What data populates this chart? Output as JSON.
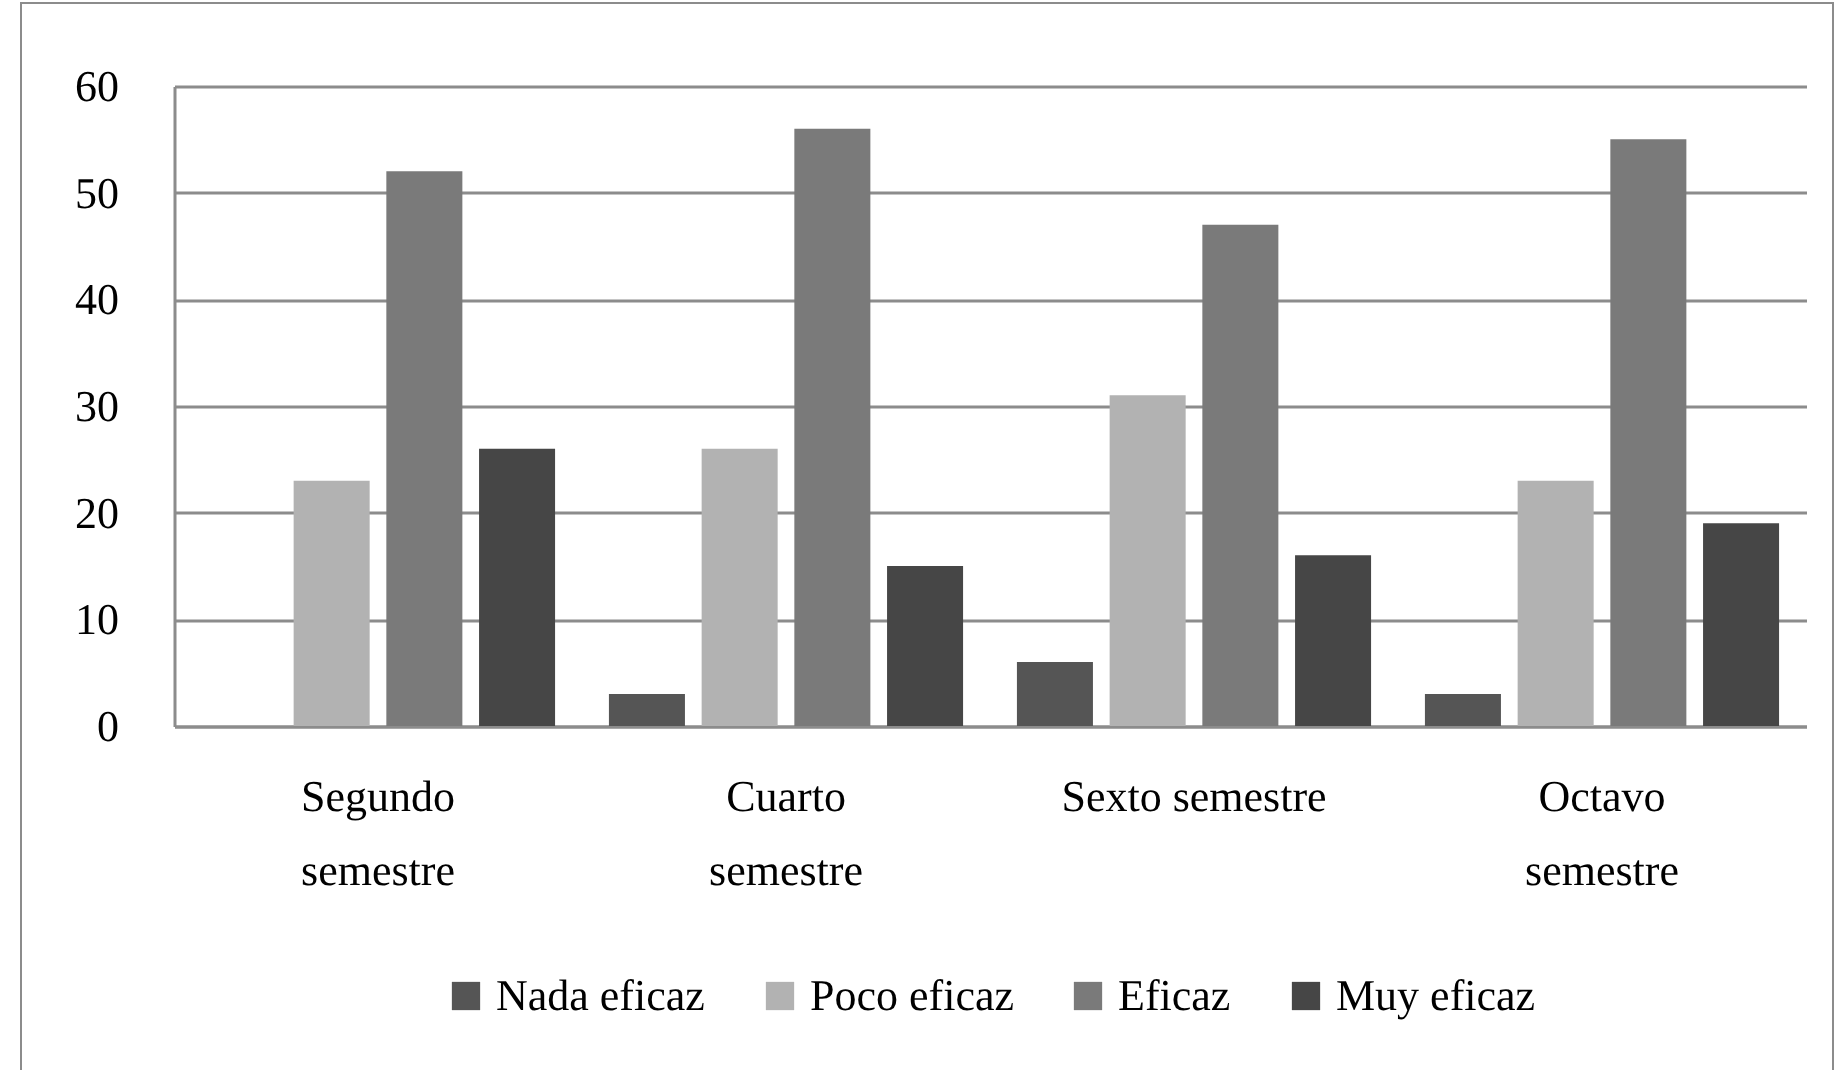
{
  "chart_data": {
    "type": "bar",
    "categories": [
      "Segundo semestre",
      "Cuarto semestre",
      "Sexto semestre",
      "Octavo semestre"
    ],
    "series": [
      {
        "name": "Nada eficaz",
        "color": "#555555",
        "values": [
          null,
          3,
          6,
          3
        ]
      },
      {
        "name": "Poco eficaz",
        "color": "#b2b2b2",
        "values": [
          23,
          26,
          31,
          23
        ]
      },
      {
        "name": "Eficaz",
        "color": "#7a7a7a",
        "values": [
          52,
          56,
          47,
          55
        ]
      },
      {
        "name": "Muy eficaz",
        "color": "#464646",
        "values": [
          26,
          15,
          16,
          19
        ]
      }
    ],
    "ylim": [
      0,
      60
    ],
    "yticks": [
      0,
      10,
      20,
      30,
      40,
      50,
      60
    ],
    "grid": "y",
    "legend": "bottom"
  }
}
